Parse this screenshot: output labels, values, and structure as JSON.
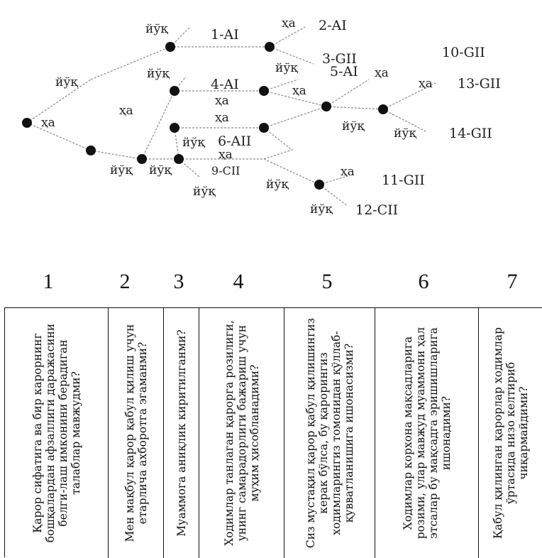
{
  "tree": {
    "yes": "ҳа",
    "no": "йўқ",
    "outcomes": [
      "1-AI",
      "2-AI",
      "3-GII",
      "4-AI",
      "5-AI",
      "6-AII",
      "9-CII",
      "10-GII",
      "11-GII",
      "12-CII",
      "13-GII",
      "14-GII"
    ]
  },
  "columns": [
    {
      "num": "1",
      "question": "Қарор сифатига ва бир карорнинг бошқалардан афзаллиги даражасини белги-лаш имконини берадиган талаблар мавжудми?"
    },
    {
      "num": "2",
      "question": "Мен мақбул қарор қабул қилиш учун етарлича ахборотга эгаманми?"
    },
    {
      "num": "3",
      "question": "Муаммога аниқлик киритилганми?"
    },
    {
      "num": "4",
      "question": "Ходимлар танлаган қарорга розилиги, унинг самарадорлиги бажариш учун муҳим ҳисобланадими?"
    },
    {
      "num": "5",
      "question": "Сиз мустақил қарор қабул қилишингиз керак бўлса, бу қарорингиз ходимларингиз томонидан қўллаб-қувватланишига ишонасизми?"
    },
    {
      "num": "6",
      "question": "Ходимлар корхона мақсадларига розими, улар мавжуд муаммони ҳал этсалар бу мақсадга эришишларига ишонадими?"
    },
    {
      "num": "7",
      "question": "Қабул қилинган қарорлар ходимлар ўртасида низо келтириб чиқармайдими?"
    }
  ]
}
